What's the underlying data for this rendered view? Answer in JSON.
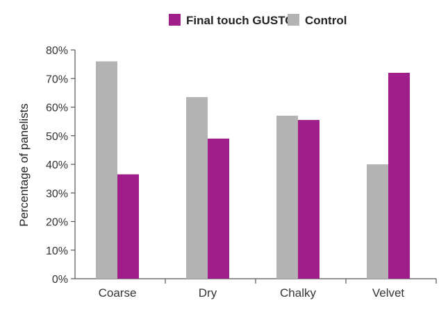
{
  "chart_data": {
    "type": "bar",
    "categories": [
      "Coarse",
      "Dry",
      "Chalky",
      "Velvet"
    ],
    "series": [
      {
        "name": "Control",
        "values": [
          76,
          63.5,
          57,
          40
        ],
        "color": "#b3b3b3"
      },
      {
        "name": "Final touch GUSTO",
        "values": [
          36.5,
          49,
          55.5,
          72
        ],
        "color": "#a01e8a"
      }
    ],
    "legend_order": [
      "Final touch GUSTO",
      "Control"
    ],
    "legend_position": "top-right",
    "ylabel": "Percentage of panelists",
    "xlabel": "",
    "ylim": [
      0,
      80
    ],
    "yticks": [
      0,
      10,
      20,
      30,
      40,
      50,
      60,
      70,
      80
    ],
    "ytick_labels": [
      "0%",
      "10%",
      "20%",
      "30%",
      "40%",
      "50%",
      "60%",
      "70%",
      "80%"
    ],
    "grid": false
  }
}
